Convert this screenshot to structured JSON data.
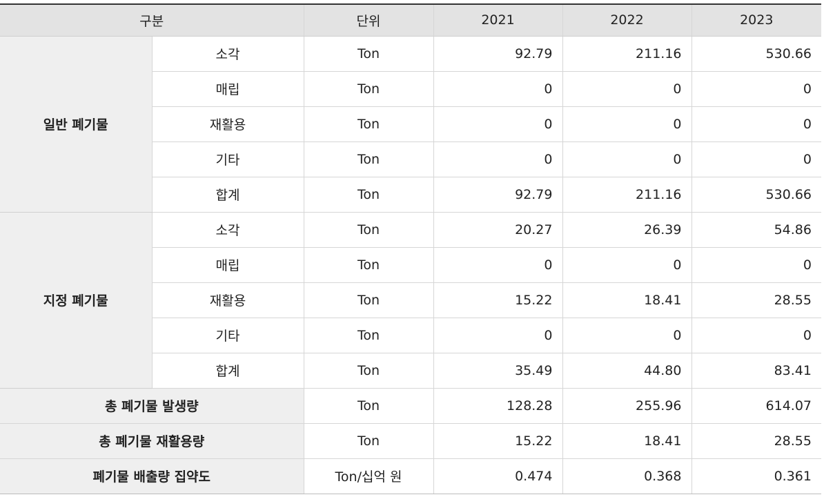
{
  "header": {
    "category": "구분",
    "unit": "단위",
    "years": [
      "2021",
      "2022",
      "2023"
    ]
  },
  "groups": [
    {
      "label": "일반 폐기물",
      "rows": [
        {
          "sub": "소각",
          "unit": "Ton",
          "values": [
            "92.79",
            "211.16",
            "530.66"
          ]
        },
        {
          "sub": "매립",
          "unit": "Ton",
          "values": [
            "0",
            "0",
            "0"
          ]
        },
        {
          "sub": "재활용",
          "unit": "Ton",
          "values": [
            "0",
            "0",
            "0"
          ]
        },
        {
          "sub": "기타",
          "unit": "Ton",
          "values": [
            "0",
            "0",
            "0"
          ]
        },
        {
          "sub": "합계",
          "unit": "Ton",
          "values": [
            "92.79",
            "211.16",
            "530.66"
          ]
        }
      ]
    },
    {
      "label": "지정 폐기물",
      "rows": [
        {
          "sub": "소각",
          "unit": "Ton",
          "values": [
            "20.27",
            "26.39",
            "54.86"
          ]
        },
        {
          "sub": "매립",
          "unit": "Ton",
          "values": [
            "0",
            "0",
            "0"
          ]
        },
        {
          "sub": "재활용",
          "unit": "Ton",
          "values": [
            "15.22",
            "18.41",
            "28.55"
          ]
        },
        {
          "sub": "기타",
          "unit": "Ton",
          "values": [
            "0",
            "0",
            "0"
          ]
        },
        {
          "sub": "합계",
          "unit": "Ton",
          "values": [
            "35.49",
            "44.80",
            "83.41"
          ]
        }
      ]
    }
  ],
  "summary": [
    {
      "label": "총 폐기물 발생량",
      "unit": "Ton",
      "values": [
        "128.28",
        "255.96",
        "614.07"
      ]
    },
    {
      "label": "총 폐기물 재활용량",
      "unit": "Ton",
      "values": [
        "15.22",
        "18.41",
        "28.55"
      ]
    },
    {
      "label": "폐기물 배출량 집약도",
      "unit": "Ton/십억 원",
      "values": [
        "0.474",
        "0.368",
        "0.361"
      ]
    }
  ]
}
